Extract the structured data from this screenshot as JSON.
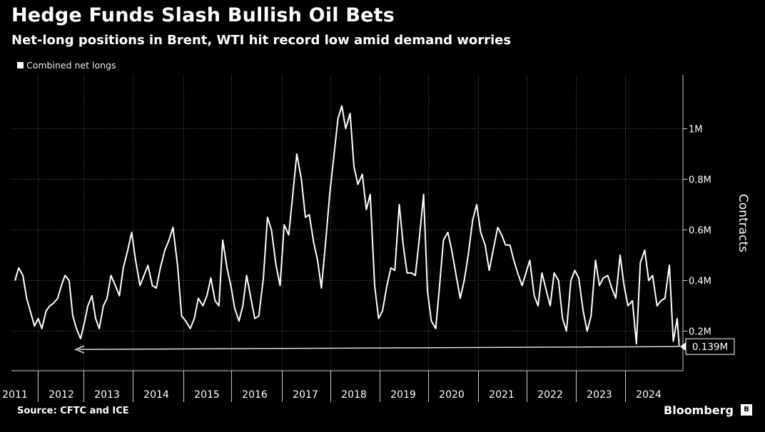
{
  "header": {
    "title": "Hedge Funds Slash Bullish Oil Bets",
    "subtitle": "Net-long positions in Brent, WTI hit record low amid demand worries"
  },
  "legend": {
    "label": "Combined net longs",
    "color": "#ffffff"
  },
  "footer": {
    "source": "Source: CFTC and ICE",
    "brand": "Bloomberg"
  },
  "colors": {
    "background": "#000000",
    "line": "#ffffff",
    "gridline": "#5a5a5a"
  },
  "chart_data": {
    "type": "line",
    "ylabel": "Contracts",
    "xlabel": "",
    "ylim": [
      0,
      1150000
    ],
    "xlim": [
      2011.0,
      2024.67
    ],
    "y_ticks": [
      {
        "value": 200000,
        "label": "0.2M"
      },
      {
        "value": 400000,
        "label": "0.4M"
      },
      {
        "value": 600000,
        "label": "0.6M"
      },
      {
        "value": 800000,
        "label": "0.8M"
      },
      {
        "value": 1000000,
        "label": "1M"
      }
    ],
    "x_ticks": [
      "2011",
      "2012",
      "2013",
      "2014",
      "2015",
      "2016",
      "2017",
      "2018",
      "2019",
      "2020",
      "2021",
      "2022",
      "2023",
      "2024"
    ],
    "grid": true,
    "legend_position": "top-left",
    "series": [
      {
        "name": "Combined net longs",
        "x": [
          2011.0,
          2011.08,
          2011.17,
          2011.25,
          2011.33,
          2011.42,
          2011.5,
          2011.58,
          2011.67,
          2011.75,
          2011.83,
          2011.92,
          2012.0,
          2012.08,
          2012.17,
          2012.25,
          2012.33,
          2012.42,
          2012.5,
          2012.58,
          2012.67,
          2012.75,
          2012.83,
          2012.92,
          2013.0,
          2013.08,
          2013.17,
          2013.25,
          2013.33,
          2013.42,
          2013.5,
          2013.58,
          2013.67,
          2013.75,
          2013.83,
          2013.92,
          2014.0,
          2014.08,
          2014.17,
          2014.25,
          2014.33,
          2014.42,
          2014.5,
          2014.58,
          2014.67,
          2014.75,
          2014.83,
          2014.92,
          2015.0,
          2015.08,
          2015.17,
          2015.25,
          2015.33,
          2015.42,
          2015.5,
          2015.58,
          2015.67,
          2015.75,
          2015.83,
          2015.92,
          2016.0,
          2016.08,
          2016.17,
          2016.25,
          2016.33,
          2016.42,
          2016.5,
          2016.58,
          2016.67,
          2016.75,
          2016.83,
          2016.92,
          2017.0,
          2017.08,
          2017.17,
          2017.25,
          2017.33,
          2017.42,
          2017.5,
          2017.58,
          2017.67,
          2017.75,
          2017.83,
          2017.92,
          2018.0,
          2018.08,
          2018.17,
          2018.25,
          2018.33,
          2018.42,
          2018.5,
          2018.58,
          2018.67,
          2018.75,
          2018.83,
          2018.92,
          2019.0,
          2019.08,
          2019.17,
          2019.25,
          2019.33,
          2019.42,
          2019.5,
          2019.58,
          2019.67,
          2019.75,
          2019.83,
          2019.92,
          2020.0,
          2020.08,
          2020.17,
          2020.25,
          2020.33,
          2020.42,
          2020.5,
          2020.58,
          2020.67,
          2020.75,
          2020.83,
          2020.92,
          2021.0,
          2021.08,
          2021.17,
          2021.25,
          2021.33,
          2021.42,
          2021.5,
          2021.58,
          2021.67,
          2021.75,
          2021.83,
          2021.92,
          2022.0,
          2022.08,
          2022.17,
          2022.25,
          2022.33,
          2022.42,
          2022.5,
          2022.58,
          2022.67,
          2022.75,
          2022.83,
          2022.92,
          2023.0,
          2023.08,
          2023.17,
          2023.25,
          2023.33,
          2023.42,
          2023.5,
          2023.58,
          2023.67,
          2023.75,
          2023.83,
          2023.92,
          2024.0,
          2024.08,
          2024.17,
          2024.25,
          2024.33,
          2024.42,
          2024.5,
          2024.58,
          2024.62
        ],
        "values": [
          400000,
          450000,
          420000,
          330000,
          280000,
          220000,
          250000,
          210000,
          280000,
          300000,
          310000,
          330000,
          380000,
          420000,
          400000,
          260000,
          210000,
          170000,
          230000,
          300000,
          340000,
          250000,
          210000,
          300000,
          330000,
          420000,
          380000,
          340000,
          450000,
          520000,
          590000,
          480000,
          380000,
          420000,
          460000,
          380000,
          370000,
          450000,
          520000,
          560000,
          610000,
          460000,
          260000,
          240000,
          210000,
          250000,
          330000,
          300000,
          340000,
          410000,
          320000,
          300000,
          560000,
          450000,
          380000,
          290000,
          240000,
          300000,
          420000,
          330000,
          250000,
          260000,
          410000,
          650000,
          600000,
          460000,
          380000,
          620000,
          580000,
          740000,
          900000,
          800000,
          650000,
          660000,
          550000,
          480000,
          370000,
          560000,
          740000,
          880000,
          1040000,
          1090000,
          1000000,
          1060000,
          850000,
          780000,
          820000,
          680000,
          740000,
          380000,
          250000,
          280000,
          380000,
          450000,
          440000,
          700000,
          540000,
          430000,
          430000,
          420000,
          560000,
          740000,
          360000,
          240000,
          210000,
          380000,
          560000,
          590000,
          520000,
          430000,
          330000,
          400000,
          500000,
          640000,
          700000,
          590000,
          540000,
          440000,
          520000,
          610000,
          580000,
          540000,
          540000,
          480000,
          430000,
          380000,
          430000,
          480000,
          340000,
          300000,
          430000,
          360000,
          300000,
          430000,
          400000,
          250000,
          200000,
          400000,
          440000,
          410000,
          280000,
          200000,
          260000,
          480000,
          380000,
          410000,
          420000,
          370000,
          330000,
          500000,
          380000,
          300000,
          320000,
          150000,
          470000,
          520000,
          400000,
          420000,
          300000,
          320000,
          330000,
          460000,
          160000,
          250000,
          139000
        ]
      }
    ],
    "annotations": [
      {
        "text": "0.139M",
        "value": 139000,
        "note_arrow": "horizontal arrow pointing left at record low"
      }
    ]
  }
}
